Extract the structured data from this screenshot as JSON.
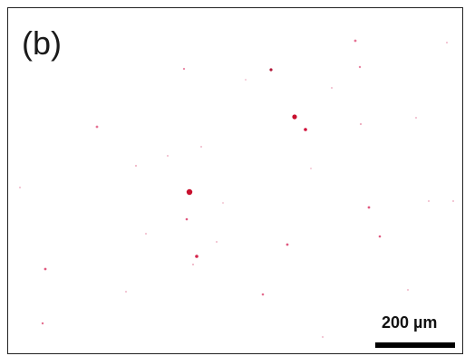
{
  "panel_label": "(b)",
  "scale_bar": {
    "label": "200 µm"
  },
  "colors": {
    "background": "#ffffff",
    "speck_color": "#d0103a",
    "border": "#222222"
  }
}
